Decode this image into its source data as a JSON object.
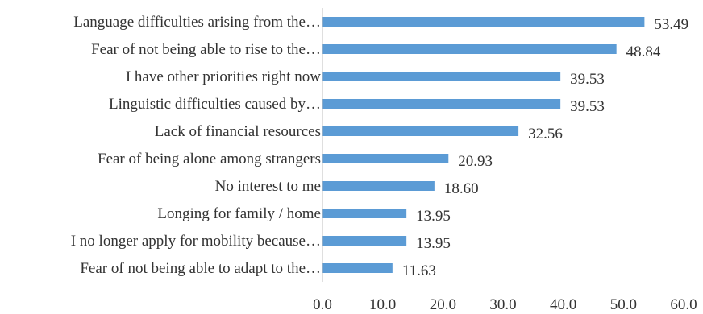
{
  "chart_data": {
    "type": "bar",
    "orientation": "horizontal",
    "categories": [
      "Language difficulties arising from the…",
      "Fear of not being able to rise to the…",
      "I have other priorities right now",
      "Linguistic difficulties caused by…",
      "Lack of financial resources",
      "Fear of being alone among strangers",
      "No interest to me",
      "Longing for family / home",
      "I no longer apply for mobility because…",
      "Fear of not being able to adapt to the…"
    ],
    "values": [
      53.49,
      48.84,
      39.53,
      39.53,
      32.56,
      20.93,
      18.6,
      13.95,
      13.95,
      11.63
    ],
    "value_labels": [
      "53.49",
      "48.84",
      "39.53",
      "39.53",
      "32.56",
      "20.93",
      "18.60",
      "13.95",
      "13.95",
      "11.63"
    ],
    "xlim": [
      0,
      60
    ],
    "x_ticks": [
      0,
      10,
      20,
      30,
      40,
      50,
      60
    ],
    "x_tick_labels": [
      "0.0",
      "10.0",
      "20.0",
      "30.0",
      "40.0",
      "50.0",
      "60.0"
    ],
    "title": "",
    "xlabel": "",
    "ylabel": "",
    "grid": false,
    "legend": "none",
    "bar_color": "#5B9BD5",
    "text_color": "#333333",
    "axis_color": "#bfbfbf"
  }
}
